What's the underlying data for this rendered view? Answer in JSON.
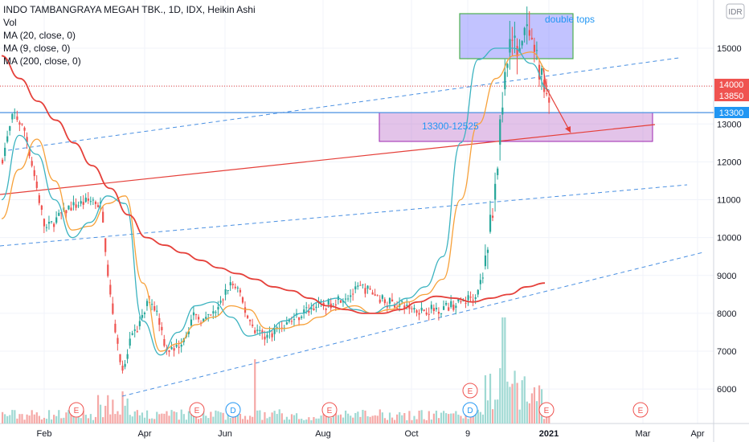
{
  "header": {
    "title": "INDO TAMBANGRAYA MEGAH TBK., 1D, IDX, Heikin Ashi",
    "vol": "Vol",
    "ma1": "MA (20, close, 0)",
    "ma2": "MA (9, close, 0)",
    "ma3": "MA (200, close, 0)"
  },
  "currency_label": "IDR",
  "annotations": {
    "double_tops": "double tops",
    "zone": "13300-12525"
  },
  "colors": {
    "up": "#26a69a",
    "down": "#ef5350",
    "ma20": "#f7a13a",
    "ma9": "#3cb3c0",
    "ma200": "#e5403a",
    "trend_blue": "#4a90e2",
    "trend_red": "#e5403a",
    "price_tag_red": "#ef5350",
    "price_tag_blue": "#2196f3"
  },
  "price_tags": [
    {
      "text": "14000",
      "value": 14000,
      "color": "#ef5350"
    },
    {
      "text": "13850",
      "value": 13850,
      "color": "#ef5350"
    },
    {
      "text": "13300",
      "value": 13300,
      "color": "#2196f3"
    }
  ],
  "events": [
    "E",
    "E",
    "D",
    "E",
    "E",
    "D",
    "E",
    "E"
  ],
  "chart_data": {
    "type": "candlestick",
    "x_ticks": [
      "Feb",
      "Apr",
      "Jun",
      "Aug",
      "Oct",
      "9",
      "2021",
      "Mar",
      "Apr"
    ],
    "y_ticks": [
      "15000",
      "14000",
      "13300",
      "13000",
      "12000",
      "11000",
      "10000",
      "9000",
      "8000",
      "7000",
      "6000"
    ],
    "ylim": [
      5500,
      16300
    ],
    "series": [
      {
        "name": "MA (20, close, 0)",
        "values": [
          10500,
          11800,
          12600,
          11500,
          10200,
          10300,
          10900,
          11100,
          8800,
          7000,
          7200,
          7700,
          7900,
          8200,
          8100,
          7600,
          7600,
          7700,
          7900,
          8100,
          8200,
          8000,
          8100,
          8300,
          8500,
          8900,
          11000,
          13000,
          14200,
          14800,
          14900,
          14400
        ]
      },
      {
        "name": "MA (9, close, 0)",
        "values": [
          11000,
          12700,
          12200,
          11000,
          10000,
          10400,
          11100,
          10900,
          7800,
          6900,
          7500,
          8200,
          8300,
          7900,
          7400,
          7500,
          7800,
          8000,
          8300,
          8400,
          8100,
          8000,
          8200,
          8400,
          8700,
          9500,
          12500,
          14700,
          15000,
          15000,
          14600,
          13900
        ]
      },
      {
        "name": "MA (200, close, 0)",
        "values": [
          14800,
          14200,
          13600,
          13100,
          12500,
          11900,
          11300,
          10600,
          10000,
          9800,
          9600,
          9400,
          9200,
          9050,
          8900,
          8700,
          8600,
          8400,
          8200,
          8100,
          8000,
          8000,
          8100,
          8300,
          8450,
          8400,
          8300,
          8400,
          8500,
          8700,
          8800
        ]
      }
    ],
    "zones": [
      {
        "label": "double tops",
        "from": 14720,
        "to": 15900
      },
      {
        "label": "13300-12525",
        "from": 12525,
        "to": 13300
      }
    ],
    "horizontal_lines": [
      14000,
      13300
    ]
  }
}
